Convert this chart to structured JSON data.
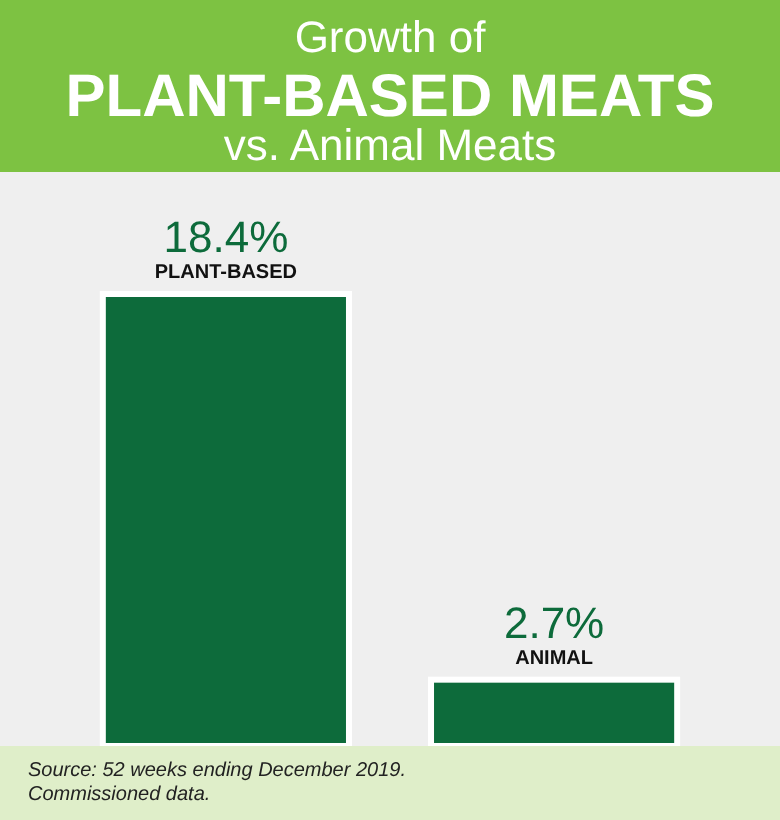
{
  "chart_data": {
    "type": "bar",
    "title": "Growth of\nPLANT-BASED MEATS\nvs. Animal Meats",
    "categories": [
      "PLANT-BASED",
      "ANIMAL"
    ],
    "values": [
      18.4,
      2.7
    ],
    "value_labels": [
      "18.4%",
      "2.7%"
    ],
    "color": "#0d6b3b",
    "annotations": [
      "Source: 52 weeks ending December 2019.\nCommissioned data."
    ]
  }
}
